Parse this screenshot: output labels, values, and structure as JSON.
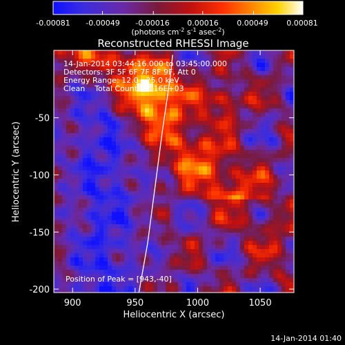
{
  "colorbar": {
    "tick_labels": [
      "-0.00081",
      "-0.00049",
      "-0.00016",
      "0.00016",
      "0.00049",
      "0.00081"
    ],
    "tick_values": [
      -0.00081,
      -0.00049,
      -0.00016,
      0.00016,
      0.00049,
      0.00081
    ],
    "units_main": "(photons cm",
    "units_sup1": "-2",
    "units_mid1": " s",
    "units_sup2": "-1",
    "units_mid2": " asec",
    "units_sup3": "-2",
    "units_end": ")"
  },
  "chart_data": {
    "type": "heatmap",
    "title": "Reconstructed RHESSI Image",
    "xlabel": "Heliocentric X (arcsec)",
    "ylabel": "Heliocentric Y (arcsec)",
    "xlim": [
      885,
      1077
    ],
    "ylim": [
      -203,
      9
    ],
    "x_ticks": [
      900,
      950,
      1000,
      1050
    ],
    "y_ticks": [
      -50,
      -100,
      -150,
      -200
    ],
    "x_tick_labels": [
      "900",
      "950",
      "1000",
      "1050"
    ],
    "y_tick_labels": [
      "-50",
      "-100",
      "-150",
      "-200"
    ],
    "colormap": "blue-purple-red-yellow-white (RHESSI color table)",
    "color_min": -0.00081,
    "color_max": 0.00081,
    "limb_curve": [
      [
        953,
        -203
      ],
      [
        960,
        -160
      ],
      [
        966,
        -110
      ],
      [
        972,
        -60
      ],
      [
        978,
        -15
      ],
      [
        980,
        5
      ]
    ],
    "annotations": [
      "14-Jan-2014 03:44:16.000 to 03:45:00.000",
      "Detectors: 3F 5F 6F 7F 8F 9F, Att 0",
      "Energy Range: 12.0 - 25.0 keV",
      "Clean    Total Counts: 1.16E+03"
    ],
    "peak_label": "Position of Peak = [943,-40]",
    "peak_position": [
      943,
      -40
    ]
  },
  "footer": {
    "timestamp": "14-Jan-2014 01:40"
  }
}
